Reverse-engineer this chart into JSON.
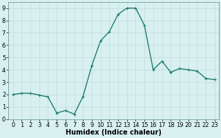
{
  "x": [
    0,
    1,
    2,
    3,
    4,
    5,
    6,
    7,
    8,
    9,
    10,
    11,
    12,
    13,
    14,
    15,
    16,
    17,
    18,
    19,
    20,
    21,
    22,
    23
  ],
  "y": [
    2.0,
    2.1,
    2.1,
    1.95,
    1.8,
    0.5,
    0.7,
    0.4,
    1.85,
    4.35,
    6.35,
    7.1,
    8.5,
    9.0,
    9.0,
    7.6,
    4.0,
    4.7,
    3.8,
    4.1,
    4.0,
    3.9,
    3.3,
    3.2
  ],
  "line_color": "#1a7a6e",
  "marker": "+",
  "marker_size": 3,
  "bg_color": "#d8f0f0",
  "grid_color": "#c0dada",
  "xlabel": "Humidex (Indice chaleur)",
  "xlim": [
    -0.5,
    23.5
  ],
  "ylim": [
    0,
    9.5
  ],
  "yticks": [
    0,
    1,
    2,
    3,
    4,
    5,
    6,
    7,
    8,
    9
  ],
  "xticks": [
    0,
    1,
    2,
    3,
    4,
    5,
    6,
    7,
    8,
    9,
    10,
    11,
    12,
    13,
    14,
    15,
    16,
    17,
    18,
    19,
    20,
    21,
    22,
    23
  ],
  "xlabel_fontsize": 7,
  "tick_fontsize": 6,
  "line_width": 1.0
}
